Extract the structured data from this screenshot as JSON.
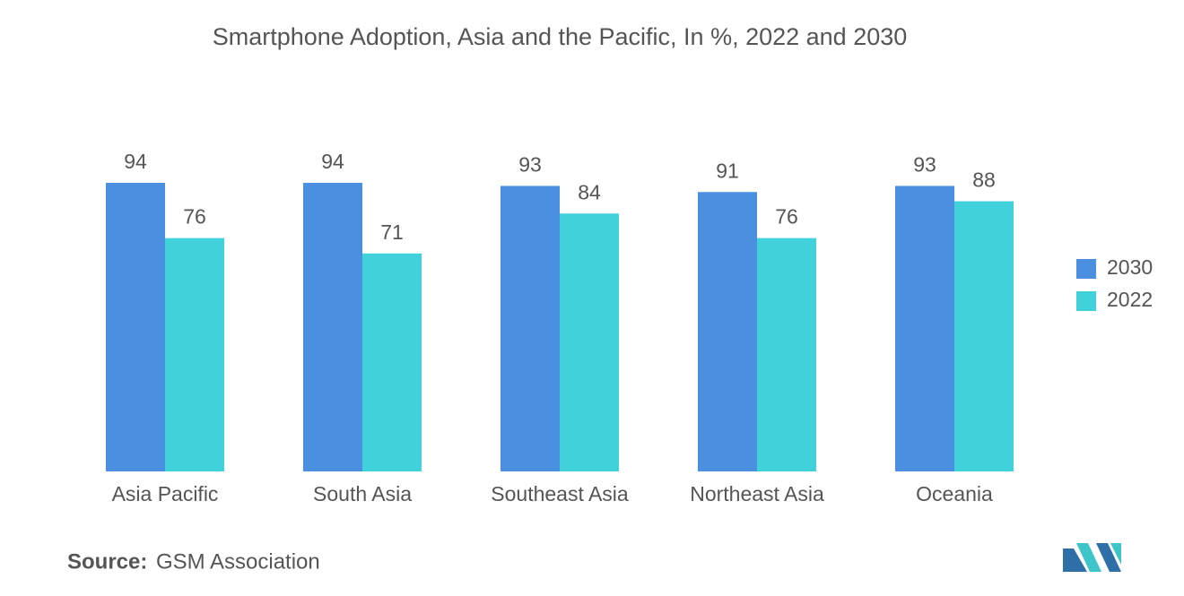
{
  "chart_data": {
    "type": "bar",
    "title": "Smartphone Adoption, Asia and the Pacific, In %, 2022 and 2030",
    "categories": [
      "Asia Pacific",
      "South Asia",
      "Southeast Asia",
      "Northeast Asia",
      "Oceania"
    ],
    "series": [
      {
        "name": "2030",
        "color": "#4a8fe0",
        "values": [
          94,
          94,
          93,
          91,
          93
        ]
      },
      {
        "name": "2022",
        "color": "#40d1da",
        "values": [
          76,
          71,
          84,
          76,
          88
        ]
      }
    ],
    "legend": "right",
    "grid": false,
    "source_label": "Source:",
    "source": "GSM Association"
  }
}
